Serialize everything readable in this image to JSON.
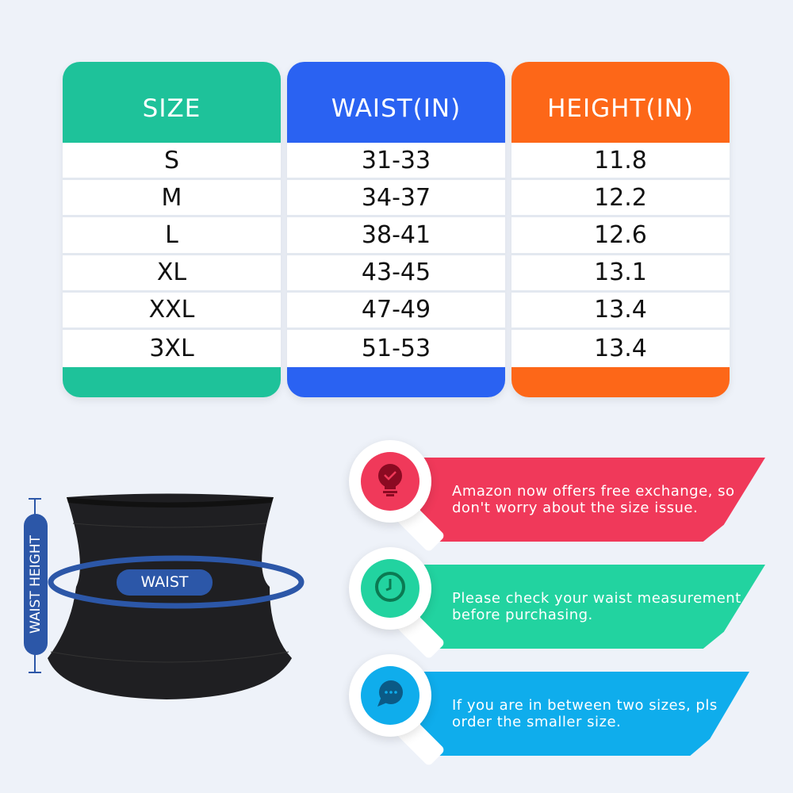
{
  "table": {
    "columns": [
      {
        "header": "SIZE",
        "color": "#1ec29a",
        "values": [
          "S",
          "M",
          "L",
          "XL",
          "XXL",
          "3XL"
        ]
      },
      {
        "header": "WAIST(IN)",
        "color": "#2a62f2",
        "values": [
          "31-33",
          "34-37",
          "38-41",
          "43-45",
          "47-49",
          "51-53"
        ]
      },
      {
        "header": "HEIGHT(IN)",
        "color": "#fd6718",
        "values": [
          "11.8",
          "12.2",
          "12.6",
          "13.1",
          "13.4",
          "13.4"
        ]
      }
    ]
  },
  "diagram": {
    "waist_label": "WAIST",
    "height_label": "WAIST HEIGHT",
    "accent": "#2c57a8"
  },
  "tips": [
    {
      "text": "Amazon now offers free exchange, so don't worry about the size issue.",
      "icon": "lightbulb-check-icon",
      "color": "#f0395a",
      "icon_color": "#8b0a22"
    },
    {
      "text": "Please check your waist measurement before purchasing.",
      "icon": "clock-icon",
      "color": "#22d3a0",
      "icon_color": "#0b7a52"
    },
    {
      "text": "If you are in between two sizes, pls order the smaller size.",
      "icon": "chat-bubble-icon",
      "color": "#0fadec",
      "icon_color": "#0b5a86"
    }
  ]
}
